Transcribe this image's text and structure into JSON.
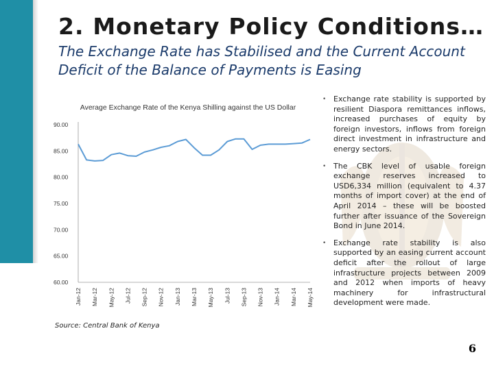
{
  "slide": {
    "heading_words": [
      "2.",
      "Monetary",
      "Policy",
      "Conditions…"
    ],
    "subtitle": "The Exchange Rate has Stabilised and the Current Account Deficit of the Balance of Payments is Easing",
    "page_number": "6",
    "accent_color": "#1f8fa6"
  },
  "source_note": "Source: Central Bank of Kenya",
  "bullets": [
    "Exchange rate stability is supported by resilient Diaspora remittances inflows, increased purchases of equity by foreign investors, inflows from foreign direct investment in infrastructure and energy sectors.",
    "The CBK level of usable foreign exchange reserves increased to USD6,334 million (equivalent to 4.37 months of import cover) at the end of April 2014 – these will be boosted further after issuance of the Sovereign Bond in June 2014.",
    "Exchange rate stability is also supported by an easing current account deficit after the rollout of large infrastructure projects between 2009 and 2012 when imports of heavy machinery for infrastructural development were made."
  ],
  "chart_data": {
    "type": "line",
    "title": "Average Exchange Rate of the Kenya Shilling against the US Dollar",
    "xlabel": "",
    "ylabel": "",
    "ylim": [
      60,
      90
    ],
    "yticks": [
      "90.00",
      "85.00",
      "80.00",
      "75.00",
      "70.00",
      "65.00",
      "60.00"
    ],
    "ytick_values": [
      90,
      85,
      80,
      75,
      70,
      65,
      60
    ],
    "grid": false,
    "legend": "none",
    "x": [
      "Jan-12",
      "Feb-12",
      "Mar-12",
      "Apr-12",
      "May-12",
      "Jun-12",
      "Jul-12",
      "Aug-12",
      "Sep-12",
      "Oct-12",
      "Nov-12",
      "Dec-12",
      "Jan-13",
      "Feb-13",
      "Mar-13",
      "Apr-13",
      "May-13",
      "Jun-13",
      "Jul-13",
      "Aug-13",
      "Sep-13",
      "Oct-13",
      "Nov-13",
      "Dec-13",
      "Jan-14",
      "Feb-14",
      "Mar-14",
      "Apr-14",
      "May-14"
    ],
    "xticks": [
      "Jan-12",
      "Mar-12",
      "May-12",
      "Jul-12",
      "Sep-12",
      "Nov-12",
      "Jan-13",
      "Mar-13",
      "May-13",
      "Jul-13",
      "Sep-13",
      "Nov-13",
      "Jan-14",
      "Mar-14",
      "May-14"
    ],
    "series": [
      {
        "color": "#5b9bd5",
        "values": [
          86.3,
          83.3,
          83.1,
          83.2,
          84.3,
          84.6,
          84.1,
          84.0,
          84.8,
          85.2,
          85.7,
          86.0,
          86.8,
          87.2,
          85.6,
          84.2,
          84.2,
          85.2,
          86.8,
          87.3,
          87.3,
          85.3,
          86.1,
          86.3,
          86.3,
          86.3,
          86.4,
          86.5,
          87.2
        ]
      }
    ]
  }
}
